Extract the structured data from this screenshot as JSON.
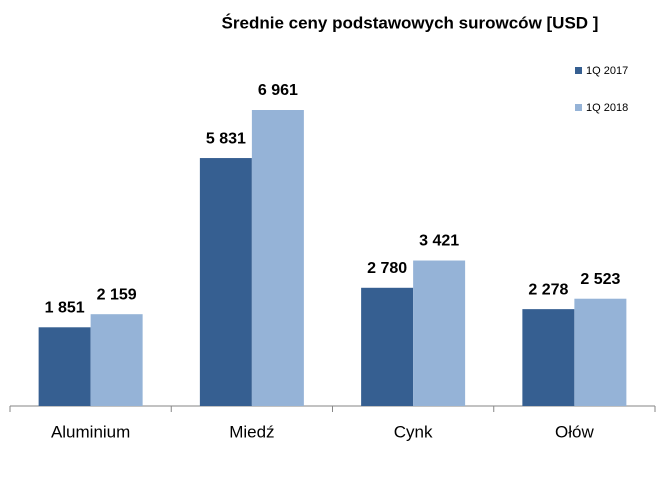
{
  "chart_data": {
    "type": "bar",
    "title": "Średnie ceny podstawowych surowców [USD ]",
    "categories": [
      "Aluminium",
      "Miedź",
      "Cynk",
      "Ołów"
    ],
    "series": [
      {
        "name": "1Q 2017",
        "color": "#365f91",
        "values": [
          1851,
          5831,
          2780,
          2278
        ],
        "value_labels": [
          "1 851",
          "5 831",
          "2 780",
          "2 278"
        ]
      },
      {
        "name": "1Q 2018",
        "color": "#95b3d7",
        "values": [
          2159,
          6961,
          3421,
          2523
        ],
        "value_labels": [
          "2 159",
          "6 961",
          "3 421",
          "2 523"
        ]
      }
    ],
    "legend": "right"
  }
}
